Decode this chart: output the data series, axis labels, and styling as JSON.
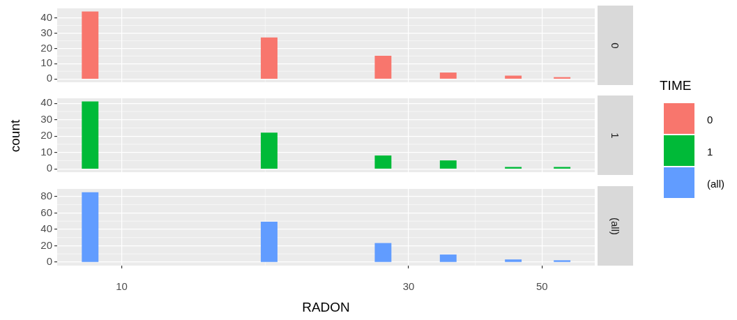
{
  "chart_data": [
    {
      "type": "histogram",
      "legend_title": "TIME",
      "legend": "right",
      "grid": true,
      "log": "x",
      "tick_labels": "y",
      "bins": [
        8.59,
        9.14,
        9.73,
        10.36,
        11.02,
        11.73,
        12.48,
        13.29,
        14.14,
        15.05,
        16.02,
        17.05,
        18.14,
        19.31,
        20.55,
        21.87,
        23.28,
        24.78,
        26.37,
        28.07,
        29.87,
        31.79,
        33.84,
        36.02,
        38.33,
        40.8,
        43.42,
        46.21,
        49.18,
        52.35,
        55.71
      ],
      "series": [
        {
          "name": "0",
          "color": "#f8766d",
          "values": [
            44,
            0,
            0,
            0,
            0,
            0,
            0,
            0,
            0,
            0,
            0,
            27,
            0,
            0,
            0,
            0,
            0,
            0,
            15,
            0,
            0,
            0,
            4,
            0,
            0,
            0,
            2,
            0,
            0,
            1
          ]
        }
      ],
      "xlim": [
        7.81,
        61.2
      ],
      "xticks": [
        10,
        30,
        50
      ],
      "ylim": [
        -2.2,
        46.2
      ],
      "yticks": [
        0,
        10,
        20,
        30,
        40
      ]
    },
    {
      "type": "histogram",
      "ylabel": "count",
      "legend": "right",
      "grid": true,
      "log": "x",
      "tick_labels": "y",
      "bins": [
        8.59,
        9.14,
        9.73,
        10.36,
        11.02,
        11.73,
        12.48,
        13.29,
        14.14,
        15.05,
        16.02,
        17.05,
        18.14,
        19.31,
        20.55,
        21.87,
        23.28,
        24.78,
        26.37,
        28.07,
        29.87,
        31.79,
        33.84,
        36.02,
        38.33,
        40.8,
        43.42,
        46.21,
        49.18,
        52.35,
        55.71
      ],
      "series": [
        {
          "name": "1",
          "color": "#00ba38",
          "values": [
            41,
            0,
            0,
            0,
            0,
            0,
            0,
            0,
            0,
            0,
            0,
            22,
            0,
            0,
            0,
            0,
            0,
            0,
            8,
            0,
            0,
            0,
            5,
            0,
            0,
            0,
            1,
            0,
            0,
            1
          ]
        }
      ],
      "xlim": [
        7.81,
        61.2
      ],
      "xticks": [
        10,
        30,
        50
      ],
      "ylim": [
        -2.05,
        43.05
      ],
      "yticks": [
        0,
        10,
        20,
        30,
        40
      ]
    },
    {
      "type": "histogram",
      "xlabel": "RADON",
      "legend": "right",
      "grid": true,
      "log": "x",
      "bins": [
        8.59,
        9.14,
        9.73,
        10.36,
        11.02,
        11.73,
        12.48,
        13.29,
        14.14,
        15.05,
        16.02,
        17.05,
        18.14,
        19.31,
        20.55,
        21.87,
        23.28,
        24.78,
        26.37,
        28.07,
        29.87,
        31.79,
        33.84,
        36.02,
        38.33,
        40.8,
        43.42,
        46.21,
        49.18,
        52.35,
        55.71
      ],
      "series": [
        {
          "name": "(all)",
          "color": "#619cff",
          "values": [
            85,
            0,
            0,
            0,
            0,
            0,
            0,
            0,
            0,
            0,
            0,
            49,
            0,
            0,
            0,
            0,
            0,
            0,
            23,
            0,
            0,
            0,
            9,
            0,
            0,
            0,
            3,
            0,
            0,
            2
          ]
        }
      ],
      "xlim": [
        7.81,
        61.2
      ],
      "xticks": [
        10,
        30,
        50
      ],
      "ylim": [
        -4.25,
        89.25
      ],
      "yticks": [
        0,
        20,
        40,
        60,
        80
      ]
    }
  ]
}
